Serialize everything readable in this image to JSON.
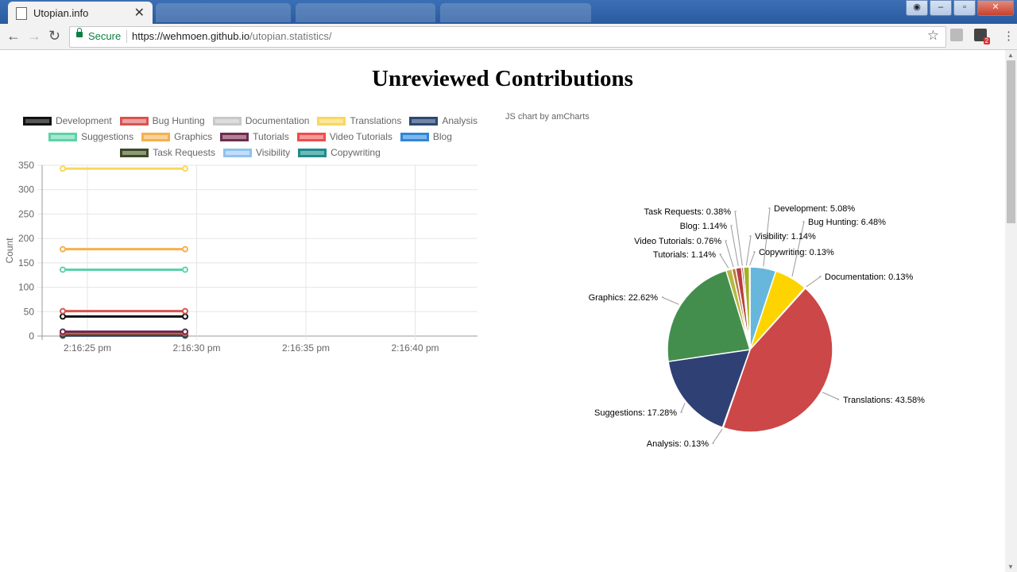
{
  "browser": {
    "tab_title": "Utopian.info",
    "secure_label": "Secure",
    "url_host": "https://wehmoen.github.io",
    "url_path": "/utopian.statistics/",
    "extension_badge": "2"
  },
  "page": {
    "title": "Unreviewed Contributions",
    "credit": "JS chart by amCharts"
  },
  "legend": [
    {
      "name": "Development",
      "color": "#111111",
      "fill": "#555555"
    },
    {
      "name": "Bug Hunting",
      "color": "#d9534f",
      "fill": "#eba19f"
    },
    {
      "name": "Documentation",
      "color": "#c8c8c8",
      "fill": "#dddddd"
    },
    {
      "name": "Translations",
      "color": "#f7d85c",
      "fill": "#fae8a0"
    },
    {
      "name": "Analysis",
      "color": "#2c4870",
      "fill": "#6f86a6"
    },
    {
      "name": "Suggestions",
      "color": "#5cd3a8",
      "fill": "#a5e8cf"
    },
    {
      "name": "Graphics",
      "color": "#f6b04c",
      "fill": "#fad29a"
    },
    {
      "name": "Tutorials",
      "color": "#6b2d4f",
      "fill": "#b38096"
    },
    {
      "name": "Video Tutorials",
      "color": "#ef4d4d",
      "fill": "#f69a9a"
    },
    {
      "name": "Blog",
      "color": "#2f86d6",
      "fill": "#7fb6ea"
    },
    {
      "name": "Task Requests",
      "color": "#3d4a2a",
      "fill": "#8d9a74"
    },
    {
      "name": "Visibility",
      "color": "#8ec2ef",
      "fill": "#c2defa"
    },
    {
      "name": "Copywriting",
      "color": "#1f8a8a",
      "fill": "#6cb9b9"
    }
  ],
  "chart_data": [
    {
      "type": "line",
      "ylabel": "Count",
      "xlabel": "",
      "ylim": [
        0,
        350
      ],
      "yticks": [
        "350",
        "300",
        "250",
        "200",
        "150",
        "100",
        "50",
        "0"
      ],
      "xticks": [
        "2:16:25 pm",
        "2:16:30 pm",
        "2:16:35 pm",
        "2:16:40 pm"
      ],
      "x": [
        "2:16:24 pm",
        "2:16:29 pm"
      ],
      "series": [
        {
          "name": "Translations",
          "values": [
            343,
            343
          ]
        },
        {
          "name": "Graphics",
          "values": [
            178,
            178
          ]
        },
        {
          "name": "Suggestions",
          "values": [
            136,
            136
          ]
        },
        {
          "name": "Bug Hunting",
          "values": [
            51,
            51
          ]
        },
        {
          "name": "Development",
          "values": [
            40,
            40
          ]
        },
        {
          "name": "Tutorials",
          "values": [
            9,
            9
          ]
        },
        {
          "name": "Blog",
          "values": [
            9,
            9
          ]
        },
        {
          "name": "Video Tutorials",
          "values": [
            6,
            6
          ]
        },
        {
          "name": "Task Requests",
          "values": [
            3,
            3
          ]
        },
        {
          "name": "Analysis",
          "values": [
            1,
            1
          ]
        },
        {
          "name": "Documentation",
          "values": [
            1,
            1
          ]
        },
        {
          "name": "Visibility",
          "values": [
            9,
            9
          ]
        },
        {
          "name": "Copywriting",
          "values": [
            1,
            1
          ]
        }
      ]
    },
    {
      "type": "pie",
      "slices": [
        {
          "label": "Development: 5.08%",
          "value": 5.08,
          "color": "#67b7dc"
        },
        {
          "label": "Bug Hunting: 6.48%",
          "value": 6.48,
          "color": "#fdd400"
        },
        {
          "label": "Documentation: 0.13%",
          "value": 0.13,
          "color": "#84b761"
        },
        {
          "label": "Translations: 43.58%",
          "value": 43.58,
          "color": "#cc4748"
        },
        {
          "label": "Analysis: 0.13%",
          "value": 0.13,
          "color": "#cd82ad"
        },
        {
          "label": "Suggestions: 17.28%",
          "value": 17.28,
          "color": "#2f4074"
        },
        {
          "label": "Graphics: 22.62%",
          "value": 22.62,
          "color": "#448e4d"
        },
        {
          "label": "Tutorials: 1.14%",
          "value": 1.14,
          "color": "#b7b83f"
        },
        {
          "label": "Video Tutorials: 0.76%",
          "value": 0.76,
          "color": "#b9783f"
        },
        {
          "label": "Blog: 1.14%",
          "value": 1.14,
          "color": "#b93e3d"
        },
        {
          "label": "Task Requests: 0.38%",
          "value": 0.38,
          "color": "#913167"
        },
        {
          "label": "Visibility: 1.14%",
          "value": 1.14,
          "color": "#a0b41c"
        },
        {
          "label": "Copywriting: 0.13%",
          "value": 0.13,
          "color": "#67b7dc"
        }
      ]
    }
  ]
}
